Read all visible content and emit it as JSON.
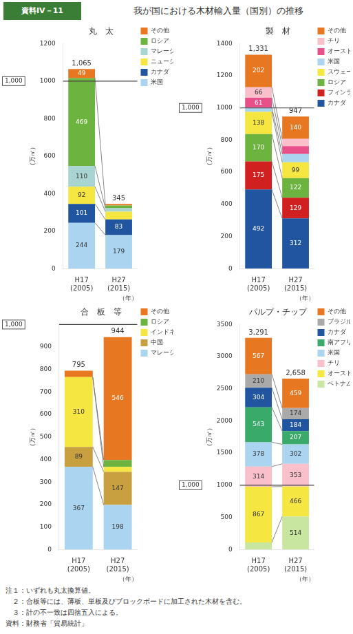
{
  "title": "我が国における木材輸入量（国別）の推移",
  "title_label": "資料IV－11",
  "footnotes": [
    "注１：いずれも丸太換算値。",
    "　２：合板等には、薄板、単板及びブロックボードに加工された木材を含む。",
    "　３：計の不一致は四捨五入による。",
    "資料：財務省「貿易統計」"
  ],
  "chart_data": [
    {
      "type": "bar",
      "stacked": true,
      "title": "丸　太",
      "xlabel": "（年）",
      "ylabel": "（万㎥）",
      "categories": [
        "H17\n(2005)",
        "H27\n(2015)"
      ],
      "series": [
        {
          "name": "その他",
          "color": "#e87722",
          "values": [
            49,
            8
          ],
          "value_labels": [
            "49",
            null
          ]
        },
        {
          "name": "ロシア",
          "color": "#6db33f",
          "values": [
            469,
            15
          ],
          "value_labels": [
            "469",
            null
          ]
        },
        {
          "name": "マレーシア",
          "color": "#a8d5d1",
          "values": [
            110,
            18
          ],
          "value_labels": [
            "110",
            null
          ]
        },
        {
          "name": "ニュージーランド",
          "color": "#f5e642",
          "values": [
            92,
            42
          ],
          "value_labels": [
            "92",
            null
          ]
        },
        {
          "name": "カナダ",
          "color": "#2155a0",
          "values": [
            101,
            83
          ],
          "value_labels": [
            "101",
            "83"
          ]
        },
        {
          "name": "米国",
          "color": "#aad4f0",
          "values": [
            244,
            179
          ],
          "value_labels": [
            "244",
            "179"
          ]
        }
      ],
      "totals": [
        1065,
        345
      ],
      "total_labels": [
        "1,065",
        "345"
      ],
      "reference_line": {
        "value": 1000,
        "label": "1,000"
      },
      "ylim": [
        0,
        1200
      ],
      "yticks": [
        0,
        200,
        400,
        600,
        800,
        1000,
        1200
      ],
      "grid": false,
      "legend": "right",
      "data_labels": true
    },
    {
      "type": "bar",
      "stacked": true,
      "title": "製　材",
      "xlabel": "（年）",
      "ylabel": "（万㎥）",
      "categories": [
        "H17\n(2005)",
        "H27\n(2015)"
      ],
      "series": [
        {
          "name": "その他",
          "color": "#e87722",
          "values": [
            202,
            140
          ],
          "value_labels": [
            "202",
            "140"
          ]
        },
        {
          "name": "チリ",
          "color": "#f9c0cb",
          "values": [
            66,
            45
          ],
          "value_labels": [
            "66",
            null
          ]
        },
        {
          "name": "オーストリア",
          "color": "#e8508a",
          "values": [
            61,
            49
          ],
          "value_labels": [
            "61",
            null
          ]
        },
        {
          "name": "米国",
          "color": "#aad4f0",
          "values": [
            27,
            51
          ],
          "value_labels": [
            null,
            null
          ]
        },
        {
          "name": "スウェーデン",
          "color": "#f5e642",
          "values": [
            138,
            99
          ],
          "value_labels": [
            "138",
            "99"
          ]
        },
        {
          "name": "ロシア",
          "color": "#6db33f",
          "values": [
            170,
            122
          ],
          "value_labels": [
            "170",
            "122"
          ]
        },
        {
          "name": "フィンランド",
          "color": "#d02020",
          "values": [
            175,
            129
          ],
          "value_labels": [
            "175",
            "129"
          ]
        },
        {
          "name": "カナダ",
          "color": "#2155a0",
          "values": [
            492,
            312
          ],
          "value_labels": [
            "492",
            "312"
          ]
        }
      ],
      "totals": [
        1331,
        947
      ],
      "total_labels": [
        "1,331",
        "947"
      ],
      "reference_line": {
        "value": 1000,
        "label": "1,000"
      },
      "ylim": [
        0,
        1400
      ],
      "yticks": [
        0,
        200,
        400,
        600,
        800,
        1000,
        1200,
        1400
      ],
      "grid": false,
      "legend": "right",
      "data_labels": true
    },
    {
      "type": "bar",
      "stacked": true,
      "title": "合　板　等",
      "xlabel": "（年）",
      "ylabel": "（万㎥）",
      "categories": [
        "H17\n(2005)",
        "H27\n(2015)"
      ],
      "series": [
        {
          "name": "その他",
          "color": "#e87722",
          "values": [
            29,
            546
          ],
          "value_labels": [
            null,
            "546"
          ]
        },
        {
          "name": "ロシア",
          "color": "#6db33f",
          "values": [
            0,
            31
          ],
          "value_labels": [
            null,
            null
          ]
        },
        {
          "name": "インドネシア",
          "color": "#f5e642",
          "values": [
            310,
            22
          ],
          "value_labels": [
            "310",
            null
          ]
        },
        {
          "name": "中国",
          "color": "#c8a040",
          "values": [
            89,
            147
          ],
          "value_labels": [
            "89",
            "147"
          ]
        },
        {
          "name": "マレーシア",
          "color": "#aad4f0",
          "values": [
            367,
            198
          ],
          "value_labels": [
            "367",
            "198"
          ]
        }
      ],
      "totals": [
        795,
        944
      ],
      "total_labels": [
        "795",
        "944"
      ],
      "reference_line": {
        "value": 1000,
        "label": "1,000"
      },
      "ylim": [
        0,
        1000
      ],
      "yticks": [
        0,
        100,
        200,
        300,
        400,
        500,
        600,
        700,
        800,
        900
      ],
      "grid": false,
      "legend": "right",
      "data_labels": true
    },
    {
      "type": "bar",
      "stacked": true,
      "title": "パルプ・チップ",
      "xlabel": "（年）",
      "ylabel": "（万㎥）",
      "categories": [
        "H17\n(2005)",
        "H27\n(2015)"
      ],
      "series": [
        {
          "name": "その他",
          "color": "#e87722",
          "values": [
            567,
            459
          ],
          "value_labels": [
            "567",
            "459"
          ]
        },
        {
          "name": "ブラジル",
          "color": "#aaaaaa",
          "values": [
            210,
            174
          ],
          "value_labels": [
            "210",
            "174"
          ]
        },
        {
          "name": "カナダ",
          "color": "#2155a0",
          "values": [
            304,
            184
          ],
          "value_labels": [
            "304",
            "184"
          ]
        },
        {
          "name": "南アフリカ",
          "color": "#3aaa6a",
          "values": [
            543,
            207
          ],
          "value_labels": [
            "543",
            "207"
          ]
        },
        {
          "name": "米国",
          "color": "#aad4f0",
          "values": [
            378,
            302
          ],
          "value_labels": [
            "378",
            "302"
          ]
        },
        {
          "name": "チリ",
          "color": "#f9c0cb",
          "values": [
            314,
            353
          ],
          "value_labels": [
            "314",
            "353"
          ]
        },
        {
          "name": "オーストラリア",
          "color": "#f5e642",
          "values": [
            867,
            466
          ],
          "value_labels": [
            "867",
            "466"
          ]
        },
        {
          "name": "ベトナム",
          "color": "#c8e6a0",
          "values": [
            109,
            514
          ],
          "value_labels": [
            null,
            "514"
          ]
        }
      ],
      "totals": [
        3291,
        2658
      ],
      "total_labels": [
        "3,291",
        "2,658"
      ],
      "reference_line": {
        "value": 1000,
        "label": "1,000"
      },
      "ylim": [
        0,
        3500
      ],
      "yticks": [
        0,
        500,
        1000,
        1500,
        2000,
        2500,
        3000,
        3500
      ],
      "grid": false,
      "legend": "right",
      "data_labels": true
    }
  ]
}
